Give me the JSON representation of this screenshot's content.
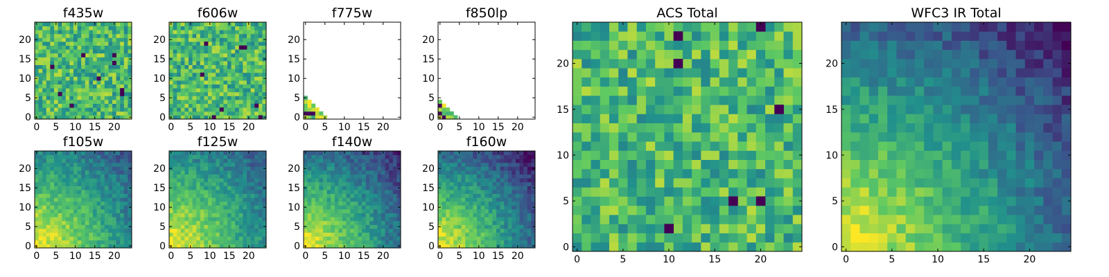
{
  "figure": {
    "background": "#ffffff",
    "colormap": "viridis",
    "colormap_stops": [
      "#440154",
      "#3b528b",
      "#21918c",
      "#5ec962",
      "#fde725"
    ]
  },
  "chart_data": [
    {
      "type": "heatmap",
      "title": "f435w",
      "grid_size": 25,
      "xlim": [
        0,
        24
      ],
      "ylim": [
        0,
        24
      ],
      "xticks": [
        0,
        5,
        10,
        15,
        20
      ],
      "yticks": [
        0,
        5,
        10,
        15,
        20
      ],
      "pattern": "uniform-noisy",
      "value_range": [
        0.45,
        0.9
      ],
      "min_pixels": 9
    },
    {
      "type": "heatmap",
      "title": "f606w",
      "grid_size": 25,
      "xlim": [
        0,
        24
      ],
      "ylim": [
        0,
        24
      ],
      "xticks": [
        0,
        5,
        10,
        15,
        20
      ],
      "yticks": [
        0,
        5,
        10,
        15,
        20
      ],
      "pattern": "uniform-noisy",
      "value_range": [
        0.45,
        0.9
      ],
      "min_pixels": 8
    },
    {
      "type": "heatmap",
      "title": "f775w",
      "grid_size": 25,
      "xlim": [
        0,
        24
      ],
      "ylim": [
        0,
        24
      ],
      "xticks": [
        0,
        5,
        10,
        15,
        20
      ],
      "yticks": [
        0,
        5,
        10,
        15,
        20
      ],
      "pattern": "corner-only",
      "corner_extent": 5
    },
    {
      "type": "heatmap",
      "title": "f850lp",
      "grid_size": 25,
      "xlim": [
        0,
        24
      ],
      "ylim": [
        0,
        24
      ],
      "xticks": [
        0,
        5,
        10,
        15,
        20
      ],
      "yticks": [
        0,
        5,
        10,
        15,
        20
      ],
      "pattern": "corner-only",
      "corner_extent": 4
    },
    {
      "type": "heatmap",
      "title": "f105w",
      "grid_size": 25,
      "xlim": [
        0,
        24
      ],
      "ylim": [
        0,
        24
      ],
      "xticks": [
        0,
        5,
        10,
        15,
        20
      ],
      "yticks": [
        0,
        5,
        10,
        15,
        20
      ],
      "pattern": "gradient-lowerleft",
      "value_range": [
        0.25,
        1.0
      ]
    },
    {
      "type": "heatmap",
      "title": "f125w",
      "grid_size": 25,
      "xlim": [
        0,
        24
      ],
      "ylim": [
        0,
        24
      ],
      "xticks": [
        0,
        5,
        10,
        15,
        20
      ],
      "yticks": [
        0,
        5,
        10,
        15,
        20
      ],
      "pattern": "gradient-lowerleft",
      "value_range": [
        0.25,
        1.0
      ]
    },
    {
      "type": "heatmap",
      "title": "f140w",
      "grid_size": 25,
      "xlim": [
        0,
        24
      ],
      "ylim": [
        0,
        24
      ],
      "xticks": [
        0,
        5,
        10,
        15,
        20
      ],
      "yticks": [
        0,
        5,
        10,
        15,
        20
      ],
      "pattern": "gradient-lowerleft",
      "value_range": [
        0.1,
        1.0
      ]
    },
    {
      "type": "heatmap",
      "title": "f160w",
      "grid_size": 25,
      "xlim": [
        0,
        24
      ],
      "ylim": [
        0,
        24
      ],
      "xticks": [
        0,
        5,
        10,
        15,
        20
      ],
      "yticks": [
        0,
        5,
        10,
        15,
        20
      ],
      "pattern": "gradient-lowerleft",
      "value_range": [
        0.05,
        1.0
      ]
    },
    {
      "type": "heatmap",
      "title": "ACS Total",
      "grid_size": 25,
      "xlim": [
        0,
        24
      ],
      "ylim": [
        0,
        24
      ],
      "xticks": [
        0,
        5,
        10,
        15,
        20
      ],
      "yticks": [
        0,
        5,
        10,
        15,
        20
      ],
      "pattern": "uniform-noisy",
      "value_range": [
        0.45,
        0.9
      ],
      "min_pixels": 7
    },
    {
      "type": "heatmap",
      "title": "WFC3 IR Total",
      "grid_size": 25,
      "xlim": [
        0,
        24
      ],
      "ylim": [
        0,
        24
      ],
      "xticks": [
        0,
        5,
        10,
        15,
        20
      ],
      "yticks": [
        0,
        5,
        10,
        15,
        20
      ],
      "pattern": "gradient-lowerleft",
      "value_range": [
        0.05,
        1.0
      ]
    }
  ]
}
